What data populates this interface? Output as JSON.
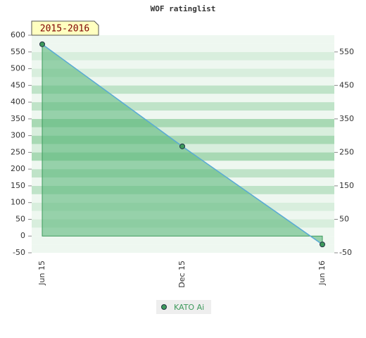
{
  "chart_data": {
    "type": "line",
    "title": "WOF ratinglist",
    "annotation": "2015-2016",
    "categories": [
      "Jun 15",
      "Dec 15",
      "Jun 16"
    ],
    "series": [
      {
        "name": "KATO Ai",
        "color": "#3d9a5c",
        "values": [
          573,
          268,
          -25
        ]
      }
    ],
    "line_color": "#5aaad6",
    "area_color": "#5cb87c",
    "ylim": [
      -50,
      600
    ],
    "yticks": [
      -50,
      0,
      50,
      100,
      150,
      200,
      250,
      300,
      350,
      400,
      450,
      500,
      550,
      600
    ],
    "y2lim": [
      -50,
      600
    ],
    "y2ticks": [
      -50,
      50,
      150,
      250,
      350,
      450,
      550
    ]
  }
}
